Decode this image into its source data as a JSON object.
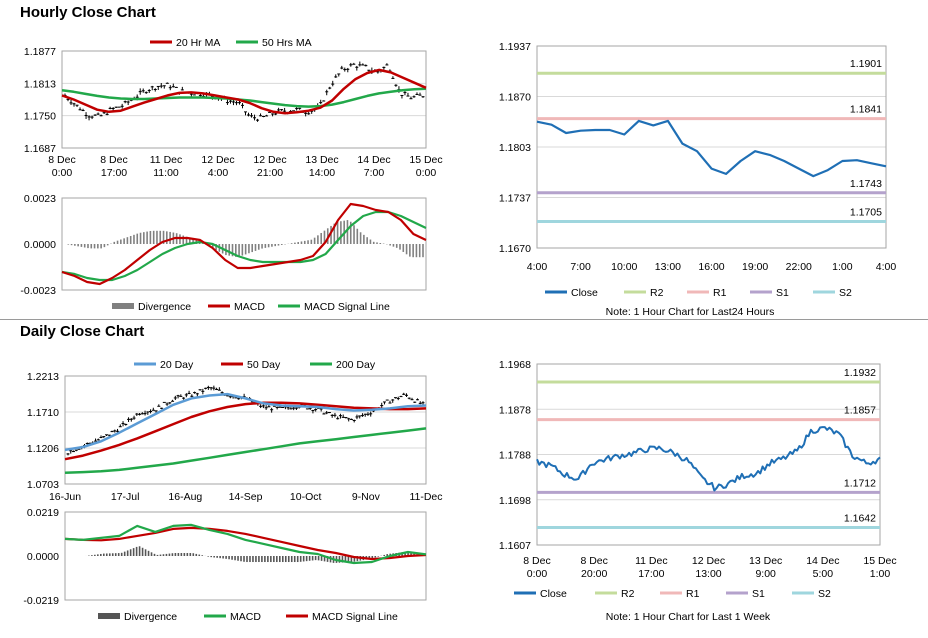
{
  "sections": {
    "hourly_title": "Hourly Close Chart",
    "daily_title": "Daily Close Chart"
  },
  "colors": {
    "red": "#c00000",
    "green": "#22a84a",
    "blue": "#1f6fb5",
    "gray": "#808080",
    "r2": "#c4dc9c",
    "r1": "#f0b8b8",
    "s1": "#b4a2cc",
    "s2": "#9fd6de",
    "lightblue": "#5b9bd5"
  },
  "chart_data": [
    {
      "id": "hourly_price",
      "type": "line",
      "legend": [
        "20 Hr MA",
        "50 Hrs MA"
      ],
      "legend_placement": "top",
      "x_ticks": [
        "8 Dec\n0:00",
        "8 Dec\n17:00",
        "11 Dec\n11:00",
        "12 Dec\n4:00",
        "12 Dec\n21:00",
        "13 Dec\n14:00",
        "14 Dec\n7:00",
        "15 Dec\n0:00"
      ],
      "ylim": [
        1.1687,
        1.1877
      ],
      "y_ticks": [
        "1.1877",
        "1.1813",
        "1.1750",
        "1.1687"
      ],
      "series": [
        {
          "name": "20 Hr MA",
          "values": [
            1.179,
            1.1782,
            1.1772,
            1.1762,
            1.1758,
            1.176,
            1.1768,
            1.1776,
            1.1783,
            1.179,
            1.1795,
            1.1796,
            1.1794,
            1.179,
            1.1786,
            1.1782,
            1.1775,
            1.1765,
            1.1758,
            1.1755,
            1.1757,
            1.176,
            1.1766,
            1.178,
            1.1803,
            1.1822,
            1.1834,
            1.184,
            1.1835,
            1.1825,
            1.1815,
            1.1805
          ]
        },
        {
          "name": "50 Hrs MA",
          "values": [
            1.18,
            1.1797,
            1.1793,
            1.1789,
            1.1786,
            1.1784,
            1.1783,
            1.1783,
            1.1784,
            1.1785,
            1.1786,
            1.1786,
            1.1786,
            1.1785,
            1.1784,
            1.1782,
            1.178,
            1.1777,
            1.1774,
            1.1771,
            1.1769,
            1.1768,
            1.1769,
            1.1772,
            1.1777,
            1.1783,
            1.1789,
            1.1794,
            1.1797,
            1.18,
            1.1802,
            1.1803
          ]
        },
        {
          "name": "price",
          "values": [
            1.179,
            1.177,
            1.1752,
            1.1748,
            1.1762,
            1.177,
            1.1785,
            1.18,
            1.1808,
            1.181,
            1.1798,
            1.1795,
            1.1793,
            1.1788,
            1.178,
            1.1776,
            1.1748,
            1.1745,
            1.1755,
            1.176,
            1.1762,
            1.1758,
            1.1765,
            1.181,
            1.184,
            1.185,
            1.1845,
            1.1835,
            1.185,
            1.1795,
            1.1785,
            1.179
          ]
        }
      ]
    },
    {
      "id": "hourly_macd",
      "type": "line",
      "legend": [
        "Divergence",
        "MACD",
        "MACD Signal Line"
      ],
      "legend_placement": "bottom",
      "ylim": [
        -0.0023,
        0.0023
      ],
      "y_ticks": [
        "0.0023",
        "0.0000",
        "-0.0023"
      ],
      "series": [
        {
          "name": "MACD",
          "values": [
            -0.0014,
            -0.0016,
            -0.0019,
            -0.002,
            -0.0017,
            -0.0013,
            -0.0008,
            -0.0003,
            0.0001,
            0.0003,
            0.0003,
            0.0002,
            -0.0002,
            -0.0008,
            -0.0012,
            -0.0012,
            -0.0011,
            -0.001,
            -0.0009,
            -0.0008,
            -0.0006,
            0.0001,
            0.0012,
            0.002,
            0.0019,
            0.0017,
            0.0016,
            0.0012,
            0.0005,
            0.0002
          ]
        },
        {
          "name": "MACD Signal Line",
          "values": [
            -0.0014,
            -0.0015,
            -0.0017,
            -0.0018,
            -0.0018,
            -0.0016,
            -0.0013,
            -0.0009,
            -0.0005,
            -0.0002,
            0.0,
            0.0001,
            0.0,
            -0.0003,
            -0.0006,
            -0.0008,
            -0.0009,
            -0.0009,
            -0.0009,
            -0.0009,
            -0.0008,
            -0.0005,
            0.0002,
            0.0009,
            0.0014,
            0.0016,
            0.0016,
            0.0014,
            0.0011,
            0.0008
          ]
        }
      ]
    },
    {
      "id": "hourly_levels",
      "type": "line",
      "legend": [
        "Close",
        "R2",
        "R1",
        "S1",
        "S2"
      ],
      "legend_placement": "bottom",
      "note": "Note: 1 Hour Chart for Last24 Hours",
      "x_ticks": [
        "4:00",
        "7:00",
        "10:00",
        "13:00",
        "16:00",
        "19:00",
        "22:00",
        "1:00",
        "4:00"
      ],
      "ylim": [
        1.167,
        1.1937
      ],
      "y_ticks": [
        "1.1937",
        "1.1870",
        "1.1803",
        "1.1737",
        "1.1670"
      ],
      "levels": {
        "R2": 1.1901,
        "R1": 1.1841,
        "S1": 1.1743,
        "S2": 1.1705
      },
      "level_labels": {
        "R2": "1.1901",
        "R1": "1.1841",
        "S1": "1.1743",
        "S2": "1.1705"
      },
      "close": [
        1.1837,
        1.1833,
        1.1822,
        1.1825,
        1.1826,
        1.1826,
        1.182,
        1.1838,
        1.1832,
        1.1838,
        1.1808,
        1.1798,
        1.1775,
        1.1768,
        1.1785,
        1.1798,
        1.1793,
        1.1785,
        1.1775,
        1.1765,
        1.1773,
        1.1785,
        1.1786,
        1.1782,
        1.1778
      ]
    },
    {
      "id": "daily_price",
      "type": "line",
      "legend": [
        "20 Day",
        "50 Day",
        "200 Day"
      ],
      "legend_placement": "top",
      "x_ticks": [
        "16-Jun",
        "17-Jul",
        "16-Aug",
        "14-Sep",
        "10-Oct",
        "9-Nov",
        "11-Dec"
      ],
      "ylim": [
        1.0703,
        1.2213
      ],
      "y_ticks": [
        "1.2213",
        "1.1710",
        "1.1206",
        "1.0703"
      ],
      "series": [
        {
          "name": "20 Day",
          "values": [
            1.118,
            1.122,
            1.13,
            1.142,
            1.155,
            1.168,
            1.181,
            1.19,
            1.194,
            1.196,
            1.19,
            1.183,
            1.18,
            1.179,
            1.178,
            1.175,
            1.173,
            1.174,
            1.176,
            1.179,
            1.18
          ]
        },
        {
          "name": "50 Day",
          "values": [
            1.105,
            1.11,
            1.117,
            1.125,
            1.134,
            1.144,
            1.154,
            1.164,
            1.172,
            1.178,
            1.182,
            1.184,
            1.184,
            1.183,
            1.181,
            1.179,
            1.177,
            1.176,
            1.175,
            1.175,
            1.176
          ]
        },
        {
          "name": "200 Day",
          "values": [
            1.086,
            1.087,
            1.088,
            1.09,
            1.093,
            1.096,
            1.099,
            1.103,
            1.107,
            1.111,
            1.115,
            1.119,
            1.123,
            1.127,
            1.13,
            1.133,
            1.136,
            1.139,
            1.142,
            1.145,
            1.148
          ]
        },
        {
          "name": "price",
          "values": [
            1.115,
            1.125,
            1.135,
            1.15,
            1.17,
            1.175,
            1.19,
            1.195,
            1.205,
            1.195,
            1.19,
            1.178,
            1.175,
            1.18,
            1.175,
            1.165,
            1.16,
            1.17,
            1.185,
            1.195,
            1.181
          ]
        }
      ]
    },
    {
      "id": "daily_macd",
      "type": "line",
      "legend": [
        "Divergence",
        "MACD",
        "MACD Signal Line"
      ],
      "legend_placement": "bottom",
      "ylim": [
        -0.0219,
        0.0219
      ],
      "y_ticks": [
        "0.0219",
        "0.0000",
        "-0.0219"
      ],
      "series": [
        {
          "name": "MACD",
          "values": [
            0.0085,
            0.008,
            0.009,
            0.01,
            0.015,
            0.012,
            0.015,
            0.0155,
            0.013,
            0.011,
            0.008,
            0.006,
            0.004,
            0.002,
            0.001,
            -0.002,
            -0.0035,
            -0.003,
            0.0,
            0.002,
            0.0008
          ]
        },
        {
          "name": "MACD Signal Line",
          "values": [
            0.0085,
            0.008,
            0.0078,
            0.0085,
            0.01,
            0.0115,
            0.0135,
            0.014,
            0.0135,
            0.0125,
            0.011,
            0.009,
            0.007,
            0.005,
            0.003,
            0.0015,
            -0.0005,
            -0.0015,
            -0.001,
            0.0,
            0.0005
          ]
        }
      ]
    },
    {
      "id": "daily_levels",
      "type": "line",
      "legend": [
        "Close",
        "R2",
        "R1",
        "S1",
        "S2"
      ],
      "legend_placement": "bottom",
      "note": "Note: 1 Hour Chart for Last 1 Week",
      "x_ticks": [
        "8 Dec\n0:00",
        "8 Dec\n20:00",
        "11 Dec\n17:00",
        "12 Dec\n13:00",
        "13 Dec\n9:00",
        "14 Dec\n5:00",
        "15 Dec\n1:00"
      ],
      "ylim": [
        1.1607,
        1.1968
      ],
      "y_ticks": [
        "1.1968",
        "1.1878",
        "1.1788",
        "1.1698",
        "1.1607"
      ],
      "levels": {
        "R2": 1.1932,
        "R1": 1.1857,
        "S1": 1.1712,
        "S2": 1.1642
      },
      "level_labels": {
        "R2": "1.1932",
        "R1": "1.1857",
        "S1": "1.1712",
        "S2": "1.1642"
      },
      "close": [
        1.1773,
        1.1765,
        1.1748,
        1.1738,
        1.177,
        1.1778,
        1.1785,
        1.179,
        1.1798,
        1.18,
        1.179,
        1.1775,
        1.174,
        1.172,
        1.173,
        1.1745,
        1.175,
        1.177,
        1.178,
        1.1795,
        1.1835,
        1.184,
        1.1828,
        1.1785,
        1.177,
        1.1778
      ]
    }
  ]
}
